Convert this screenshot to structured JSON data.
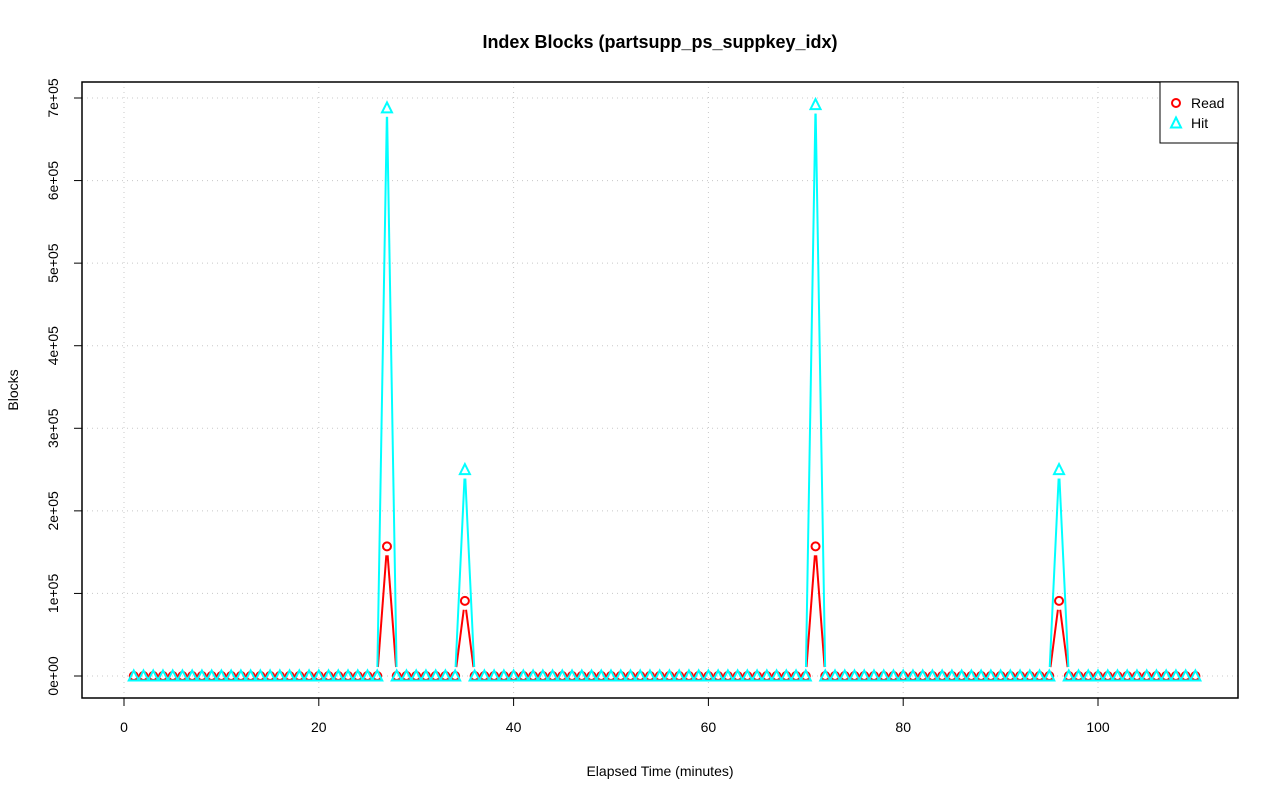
{
  "chart_data": {
    "type": "line",
    "title": "Index Blocks (partsupp_ps_suppkey_idx)",
    "xlabel": "Elapsed Time (minutes)",
    "ylabel": "Blocks",
    "xlim": [
      1,
      110
    ],
    "ylim": [
      0,
      700000
    ],
    "x_ticks": [
      0,
      20,
      40,
      60,
      80,
      100
    ],
    "x_tick_labels": [
      "0",
      "20",
      "40",
      "60",
      "80",
      "100"
    ],
    "y_ticks": [
      0,
      100000,
      200000,
      300000,
      400000,
      500000,
      600000,
      700000
    ],
    "y_tick_labels": [
      "0e+00",
      "1e+05",
      "2e+05",
      "3e+05",
      "4e+05",
      "5e+05",
      "6e+05",
      "7e+05"
    ],
    "grid": true,
    "legend_position": "top-right",
    "x_start": 1,
    "x_end": 110,
    "baseline": 0,
    "series": [
      {
        "name": "Read",
        "color": "#ff0000",
        "marker": "circle",
        "spikes": [
          {
            "x": 27,
            "y": 157000
          },
          {
            "x": 35,
            "y": 91000
          },
          {
            "x": 71,
            "y": 157000
          },
          {
            "x": 96,
            "y": 91000
          }
        ]
      },
      {
        "name": "Hit",
        "color": "#00ffff",
        "marker": "triangle",
        "spikes": [
          {
            "x": 27,
            "y": 688000
          },
          {
            "x": 35,
            "y": 250000
          },
          {
            "x": 71,
            "y": 692000
          },
          {
            "x": 96,
            "y": 250000
          }
        ]
      }
    ]
  }
}
